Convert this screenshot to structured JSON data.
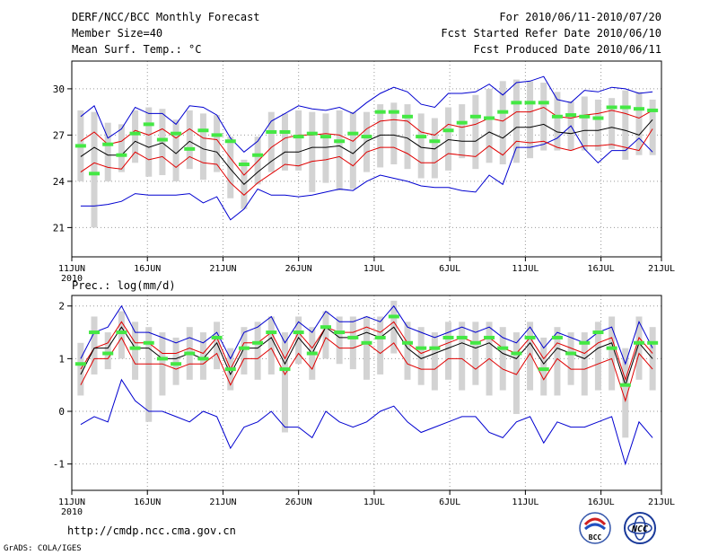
{
  "header": {
    "title": "DERF/NCC/BCC Monthly Forecast",
    "member_size": "Member Size=40",
    "variable": "Mean Surf. Temp.: °C",
    "period": "For 2010/06/11-2010/07/20",
    "fcst_started": "Fcst Started Refer Date 2010/06/10",
    "fcst_produced": "Fcst Produced Date 2010/06/11"
  },
  "footer": {
    "url": "http://cmdp.ncc.cma.gov.cn",
    "grads": "GrADS: COLA/IGES",
    "logo_bcc": "BCC",
    "logo_ncc": "NCC"
  },
  "colors": {
    "mean": "#000000",
    "spread": "#e00000",
    "envelope": "#0000d0",
    "bar": "#d3d3d3",
    "climate_marker": "#44e844"
  },
  "chart_data": [
    {
      "type": "line",
      "title": "Mean Surf. Temp.: °C",
      "ylabel": "°C",
      "ylim": [
        19.1,
        31.8
      ],
      "yticks": [
        21,
        24,
        27,
        30
      ],
      "xlim": [
        0,
        39
      ],
      "xticks": [
        0,
        5,
        10,
        15,
        20,
        25,
        30,
        35,
        39
      ],
      "xtick_labels": [
        "11JUN",
        "16JUN",
        "21JUN",
        "26JUN",
        "1JUL",
        "6JUL",
        "11JUL",
        "16JUL",
        "21JUL"
      ],
      "year_label": "2010",
      "grid": true,
      "series": [
        {
          "name": "ensemble mean",
          "color": "#000000",
          "values": [
            25.6,
            26.2,
            25.7,
            25.7,
            26.6,
            26.2,
            26.5,
            25.8,
            26.6,
            26.1,
            25.9,
            24.8,
            23.8,
            24.6,
            25.3,
            25.9,
            25.9,
            26.2,
            26.2,
            26.3,
            25.8,
            26.6,
            27.0,
            27.0,
            26.8,
            26.2,
            26.1,
            26.7,
            26.6,
            26.6,
            27.2,
            26.8,
            27.5,
            27.5,
            27.7,
            27.2,
            27.1,
            27.3,
            27.3,
            27.5,
            27.3,
            27.0,
            28.0
          ]
        },
        {
          "name": "ensemble mean + 1 sd",
          "color": "#e00000",
          "values": [
            26.6,
            27.2,
            26.4,
            26.6,
            27.3,
            27.0,
            27.4,
            26.8,
            27.4,
            26.8,
            26.7,
            25.5,
            24.4,
            25.3,
            26.2,
            26.8,
            27.0,
            27.0,
            27.1,
            27.0,
            26.6,
            27.4,
            27.9,
            28.0,
            27.9,
            27.2,
            27.0,
            27.7,
            27.5,
            27.7,
            28.1,
            27.9,
            28.5,
            28.5,
            28.8,
            28.2,
            28.1,
            28.3,
            28.4,
            28.6,
            28.4,
            28.1,
            28.6
          ]
        },
        {
          "name": "ensemble mean - 1 sd",
          "color": "#e00000",
          "values": [
            24.6,
            25.2,
            24.9,
            24.8,
            25.9,
            25.4,
            25.6,
            24.9,
            25.6,
            25.2,
            25.1,
            23.9,
            23.1,
            23.9,
            24.5,
            25.1,
            25.0,
            25.3,
            25.4,
            25.6,
            25.0,
            25.9,
            26.2,
            26.2,
            25.8,
            25.2,
            25.2,
            25.8,
            25.7,
            25.6,
            26.3,
            25.7,
            26.6,
            26.5,
            26.6,
            26.2,
            26.0,
            26.3,
            26.3,
            26.4,
            26.2,
            26.0,
            27.4
          ]
        },
        {
          "name": "ensemble max",
          "color": "#0000d0",
          "values": [
            28.2,
            28.9,
            26.8,
            27.4,
            28.8,
            28.4,
            28.4,
            27.7,
            28.9,
            28.8,
            28.3,
            26.8,
            25.9,
            26.6,
            27.9,
            28.4,
            28.9,
            28.7,
            28.6,
            28.8,
            28.4,
            29.1,
            29.7,
            30.1,
            29.8,
            29.0,
            28.8,
            29.7,
            29.7,
            29.8,
            30.3,
            29.6,
            30.4,
            30.5,
            30.8,
            29.3,
            29.1,
            29.9,
            29.8,
            30.1,
            30.0,
            29.7,
            29.8
          ]
        },
        {
          "name": "ensemble min",
          "color": "#0000d0",
          "values": [
            22.4,
            22.4,
            22.5,
            22.7,
            23.2,
            23.1,
            23.1,
            23.1,
            23.2,
            22.6,
            23.0,
            21.5,
            22.2,
            23.5,
            23.1,
            23.1,
            23.0,
            23.1,
            23.3,
            23.5,
            23.4,
            24.0,
            24.4,
            24.2,
            24.0,
            23.7,
            23.6,
            23.6,
            23.4,
            23.3,
            24.4,
            23.8,
            26.2,
            26.2,
            26.4,
            26.8,
            27.6,
            26.1,
            25.2,
            26.0,
            26.0,
            26.8,
            25.9
          ]
        },
        {
          "name": "climate",
          "color": "#44e844",
          "values": [
            26.3,
            24.5,
            26.4,
            25.7,
            27.1,
            27.7,
            26.7,
            27.1,
            26.1,
            27.3,
            27.0,
            26.6,
            25.1,
            25.7,
            27.2,
            27.2,
            26.9,
            27.1,
            26.9,
            26.6,
            27.1,
            26.9,
            28.5,
            28.5,
            28.2,
            26.9,
            26.6,
            27.3,
            27.8,
            28.2,
            28.1,
            28.5,
            29.1,
            29.1,
            29.1,
            28.2,
            28.3,
            28.2,
            28.1,
            28.8,
            28.8,
            28.7,
            28.6
          ]
        },
        {
          "name": "bar top",
          "color": "#d3d3d3",
          "values": [
            28.6,
            28.5,
            27.8,
            27.7,
            28.6,
            28.8,
            28.7,
            28.0,
            28.6,
            28.4,
            28.3,
            26.9,
            25.4,
            26.9,
            28.5,
            28.4,
            28.6,
            28.5,
            28.4,
            28.6,
            28.5,
            28.5,
            29.0,
            29.1,
            29.0,
            28.4,
            28.1,
            28.8,
            29.0,
            29.6,
            30.0,
            30.5,
            30.6,
            30.5,
            30.4,
            29.8,
            29.2,
            29.5,
            29.3,
            29.4,
            29.9,
            29.8,
            29.3
          ]
        },
        {
          "name": "bar bottom",
          "color": "#d3d3d3",
          "values": [
            24.0,
            21.0,
            24.0,
            24.6,
            25.2,
            24.3,
            24.4,
            24.0,
            24.8,
            24.1,
            24.6,
            22.9,
            22.2,
            23.8,
            24.6,
            24.7,
            24.7,
            23.3,
            23.9,
            23.4,
            23.5,
            24.6,
            24.9,
            25.1,
            24.8,
            24.2,
            24.2,
            24.7,
            25.5,
            24.8,
            25.2,
            25.1,
            25.2,
            25.5,
            26.0,
            26.0,
            26.0,
            26.0,
            26.0,
            26.1,
            25.4,
            25.7,
            25.7
          ]
        }
      ]
    },
    {
      "type": "line",
      "title": "Prec.: log(mm/d)",
      "ylabel": "log(mm/d)",
      "ylim": [
        -1.5,
        2.2
      ],
      "yticks": [
        -1,
        0,
        1,
        2
      ],
      "xlim": [
        0,
        39
      ],
      "xticks": [
        0,
        5,
        10,
        15,
        20,
        25,
        30,
        35,
        39
      ],
      "xtick_labels": [
        "11JUN",
        "16JUN",
        "21JUN",
        "26JUN",
        "1JUL",
        "6JUL",
        "11JUL",
        "16JUL",
        "21JUL"
      ],
      "year_label": "2010",
      "grid": true,
      "series": [
        {
          "name": "ensemble mean",
          "color": "#000000",
          "values": [
            0.7,
            1.2,
            1.2,
            1.6,
            1.2,
            1.2,
            1.0,
            1.0,
            1.1,
            1.0,
            1.3,
            0.7,
            1.2,
            1.2,
            1.4,
            0.9,
            1.4,
            1.1,
            1.6,
            1.4,
            1.4,
            1.5,
            1.4,
            1.6,
            1.2,
            1.0,
            1.1,
            1.2,
            1.3,
            1.2,
            1.3,
            1.1,
            1.0,
            1.3,
            0.9,
            1.2,
            1.1,
            1.0,
            1.2,
            1.3,
            0.5,
            1.3,
            1.0
          ]
        },
        {
          "name": "ensemble mean + 1 sd",
          "color": "#e00000",
          "values": [
            0.8,
            1.2,
            1.3,
            1.7,
            1.3,
            1.3,
            1.1,
            1.1,
            1.2,
            1.1,
            1.4,
            0.8,
            1.3,
            1.3,
            1.5,
            1.0,
            1.5,
            1.2,
            1.6,
            1.5,
            1.5,
            1.6,
            1.5,
            1.7,
            1.3,
            1.1,
            1.2,
            1.3,
            1.4,
            1.3,
            1.4,
            1.2,
            1.1,
            1.4,
            1.0,
            1.3,
            1.2,
            1.1,
            1.3,
            1.4,
            0.6,
            1.4,
            1.1
          ]
        },
        {
          "name": "ensemble mean - 1 sd",
          "color": "#e00000",
          "values": [
            0.5,
            1.0,
            1.0,
            1.4,
            0.9,
            0.9,
            0.9,
            0.8,
            0.9,
            0.9,
            1.1,
            0.5,
            1.0,
            1.0,
            1.2,
            0.7,
            1.1,
            0.8,
            1.4,
            1.2,
            1.2,
            1.3,
            1.1,
            1.3,
            0.9,
            0.8,
            0.8,
            1.0,
            1.0,
            0.8,
            1.0,
            0.8,
            0.7,
            1.1,
            0.6,
            1.0,
            0.8,
            0.8,
            0.9,
            1.0,
            0.2,
            1.1,
            0.8
          ]
        },
        {
          "name": "ensemble max",
          "color": "#0000d0",
          "values": [
            1.0,
            1.5,
            1.6,
            2.0,
            1.5,
            1.5,
            1.4,
            1.3,
            1.4,
            1.3,
            1.5,
            1.0,
            1.5,
            1.6,
            1.8,
            1.3,
            1.7,
            1.5,
            1.9,
            1.7,
            1.7,
            1.8,
            1.7,
            2.0,
            1.6,
            1.5,
            1.4,
            1.5,
            1.6,
            1.5,
            1.6,
            1.4,
            1.3,
            1.6,
            1.2,
            1.5,
            1.4,
            1.3,
            1.5,
            1.6,
            0.9,
            1.7,
            1.2
          ]
        },
        {
          "name": "ensemble min",
          "color": "#0000d0",
          "values": [
            -0.25,
            -0.1,
            -0.2,
            0.6,
            0.2,
            0.0,
            0.0,
            -0.1,
            -0.2,
            0.0,
            -0.1,
            -0.7,
            -0.3,
            -0.2,
            0.0,
            -0.3,
            -0.3,
            -0.5,
            0.0,
            -0.2,
            -0.3,
            -0.2,
            0.0,
            0.1,
            -0.2,
            -0.4,
            -0.3,
            -0.2,
            -0.1,
            -0.1,
            -0.4,
            -0.5,
            -0.2,
            -0.1,
            -0.6,
            -0.2,
            -0.3,
            -0.3,
            -0.2,
            -0.1,
            -1.0,
            -0.2,
            -0.5
          ]
        },
        {
          "name": "climate",
          "color": "#44e844",
          "values": [
            0.9,
            1.5,
            1.1,
            1.5,
            1.2,
            1.3,
            1.0,
            0.9,
            1.1,
            1.0,
            1.4,
            0.8,
            1.2,
            1.3,
            1.5,
            0.8,
            1.5,
            1.1,
            1.6,
            1.5,
            1.4,
            1.3,
            1.4,
            1.8,
            1.3,
            1.2,
            1.2,
            1.4,
            1.4,
            1.3,
            1.4,
            1.2,
            1.1,
            1.4,
            0.8,
            1.4,
            1.1,
            1.3,
            1.5,
            1.2,
            0.5,
            1.3,
            1.3
          ]
        },
        {
          "name": "bar top",
          "color": "#d3d3d3",
          "values": [
            1.3,
            1.8,
            1.5,
            1.9,
            1.7,
            1.6,
            1.5,
            1.4,
            1.6,
            1.5,
            1.7,
            1.2,
            1.6,
            1.7,
            1.8,
            1.5,
            1.8,
            1.6,
            1.9,
            1.8,
            1.8,
            1.8,
            1.8,
            2.1,
            1.7,
            1.6,
            1.5,
            1.7,
            1.7,
            1.7,
            1.7,
            1.6,
            1.5,
            1.7,
            1.4,
            1.6,
            1.5,
            1.5,
            1.7,
            1.8,
            1.2,
            1.8,
            1.6
          ]
        },
        {
          "name": "bar bottom",
          "color": "#d3d3d3",
          "values": [
            0.3,
            0.7,
            0.8,
            1.0,
            0.6,
            -0.2,
            0.3,
            0.5,
            0.6,
            0.6,
            0.8,
            0.4,
            0.7,
            0.6,
            0.7,
            -0.4,
            0.9,
            0.6,
            1.0,
            0.9,
            0.8,
            0.6,
            0.7,
            1.1,
            0.6,
            0.5,
            0.4,
            0.6,
            0.4,
            0.5,
            0.3,
            0.4,
            -0.05,
            0.4,
            0.3,
            0.3,
            0.5,
            0.3,
            0.4,
            0.4,
            -0.5,
            0.6,
            0.4
          ]
        }
      ]
    }
  ]
}
